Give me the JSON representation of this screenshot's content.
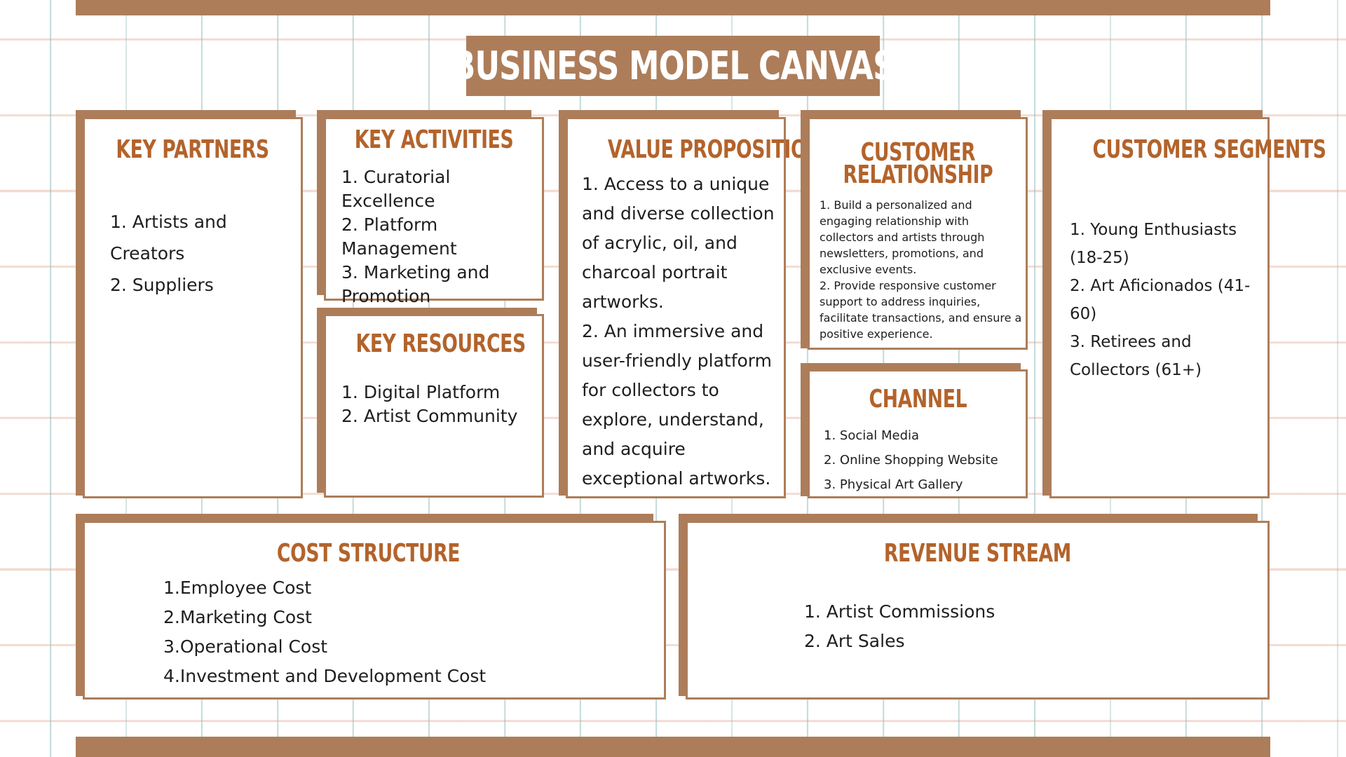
{
  "title": "BUSINESS MODEL CANVAS",
  "key_partners": {
    "heading": "KEY PARTNERS",
    "items": [
      "1. Artists and Creators",
      "2. Suppliers"
    ]
  },
  "key_activities": {
    "heading": "KEY ACTIVITIES",
    "items": [
      "1. Curatorial Excellence",
      "2. Platform Management",
      "3. Marketing and Promotion"
    ]
  },
  "key_resources": {
    "heading": "KEY RESOURCES",
    "items": [
      "1. Digital Platform",
      "2. Artist Community"
    ]
  },
  "value_propositions": {
    "heading": "VALUE PROPOSITIONS",
    "items": [
      "1. Access to a unique and diverse collection of acrylic, oil, and charcoal portrait artworks.",
      "2. An immersive and user-friendly platform for collectors to explore, understand, and acquire exceptional artworks."
    ]
  },
  "customer_relationship": {
    "heading_line1": "CUSTOMER",
    "heading_line2": "RELATIONSHIP",
    "items": [
      "1. Build a personalized and engaging relationship with collectors and artists through newsletters, promotions, and exclusive events.",
      "2. Provide responsive customer support to address inquiries, facilitate transactions, and ensure a positive experience."
    ]
  },
  "channel": {
    "heading": "CHANNEL",
    "items": [
      "1. Social Media",
      "2. Online Shopping Website",
      "3. Physical Art Gallery"
    ]
  },
  "customer_segments": {
    "heading": "CUSTOMER SEGMENTS",
    "items": [
      "1. Young Enthusiasts (18-25)",
      "2. Art Aficionados (41-60)",
      "3. Retirees and Collectors (61+)"
    ]
  },
  "cost_structure": {
    "heading": "COST STRUCTURE",
    "items": [
      "1.Employee Cost",
      "2.Marketing Cost",
      "3.Operational Cost",
      "4.Investment and Development Cost"
    ]
  },
  "revenue_stream": {
    "heading": "REVENUE STREAM",
    "items": [
      "1. Artist Commissions",
      "2. Art Sales"
    ]
  },
  "colors": {
    "accent": "#ad7d5a",
    "heading": "#b3632b",
    "text": "#1e1e1e"
  }
}
